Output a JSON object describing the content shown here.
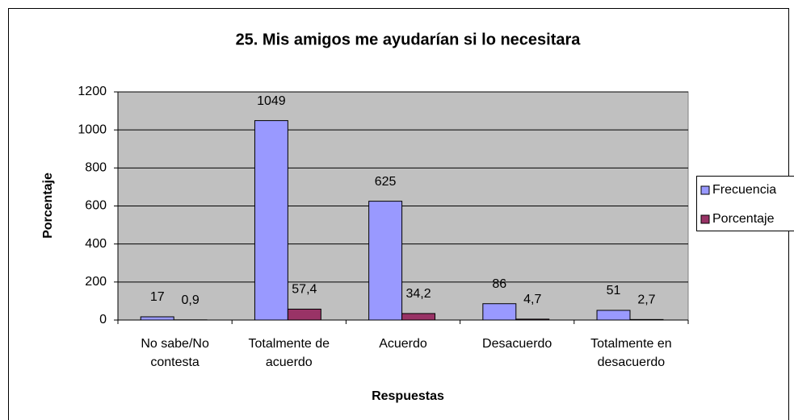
{
  "chart_data": {
    "type": "bar",
    "title": "25. Mis amigos me ayudarían si lo necesitara",
    "x_label": "Respuestas",
    "y_label": "Porcentaje",
    "categories": [
      "No sabe/No contesta",
      "Totalmente de acuerdo",
      "Acuerdo",
      "Desacuerdo",
      "Totalmente en desacuerdo"
    ],
    "series": [
      {
        "name": "Frecuencia",
        "color": "#9999ff",
        "values": [
          17,
          1049,
          625,
          86,
          51
        ]
      },
      {
        "name": "Porcentaje",
        "color": "#993366",
        "values": [
          0.9,
          57.4,
          34.2,
          4.7,
          2.7
        ],
        "value_labels": [
          "0,9",
          "57,4",
          "34,2",
          "4,7",
          "2,7"
        ]
      }
    ],
    "ylim": [
      0,
      1200
    ],
    "yticks": [
      0,
      200,
      400,
      600,
      800,
      1000,
      1200
    ],
    "grid": true,
    "legend": "right",
    "plot_background": "#c0c0c0"
  }
}
